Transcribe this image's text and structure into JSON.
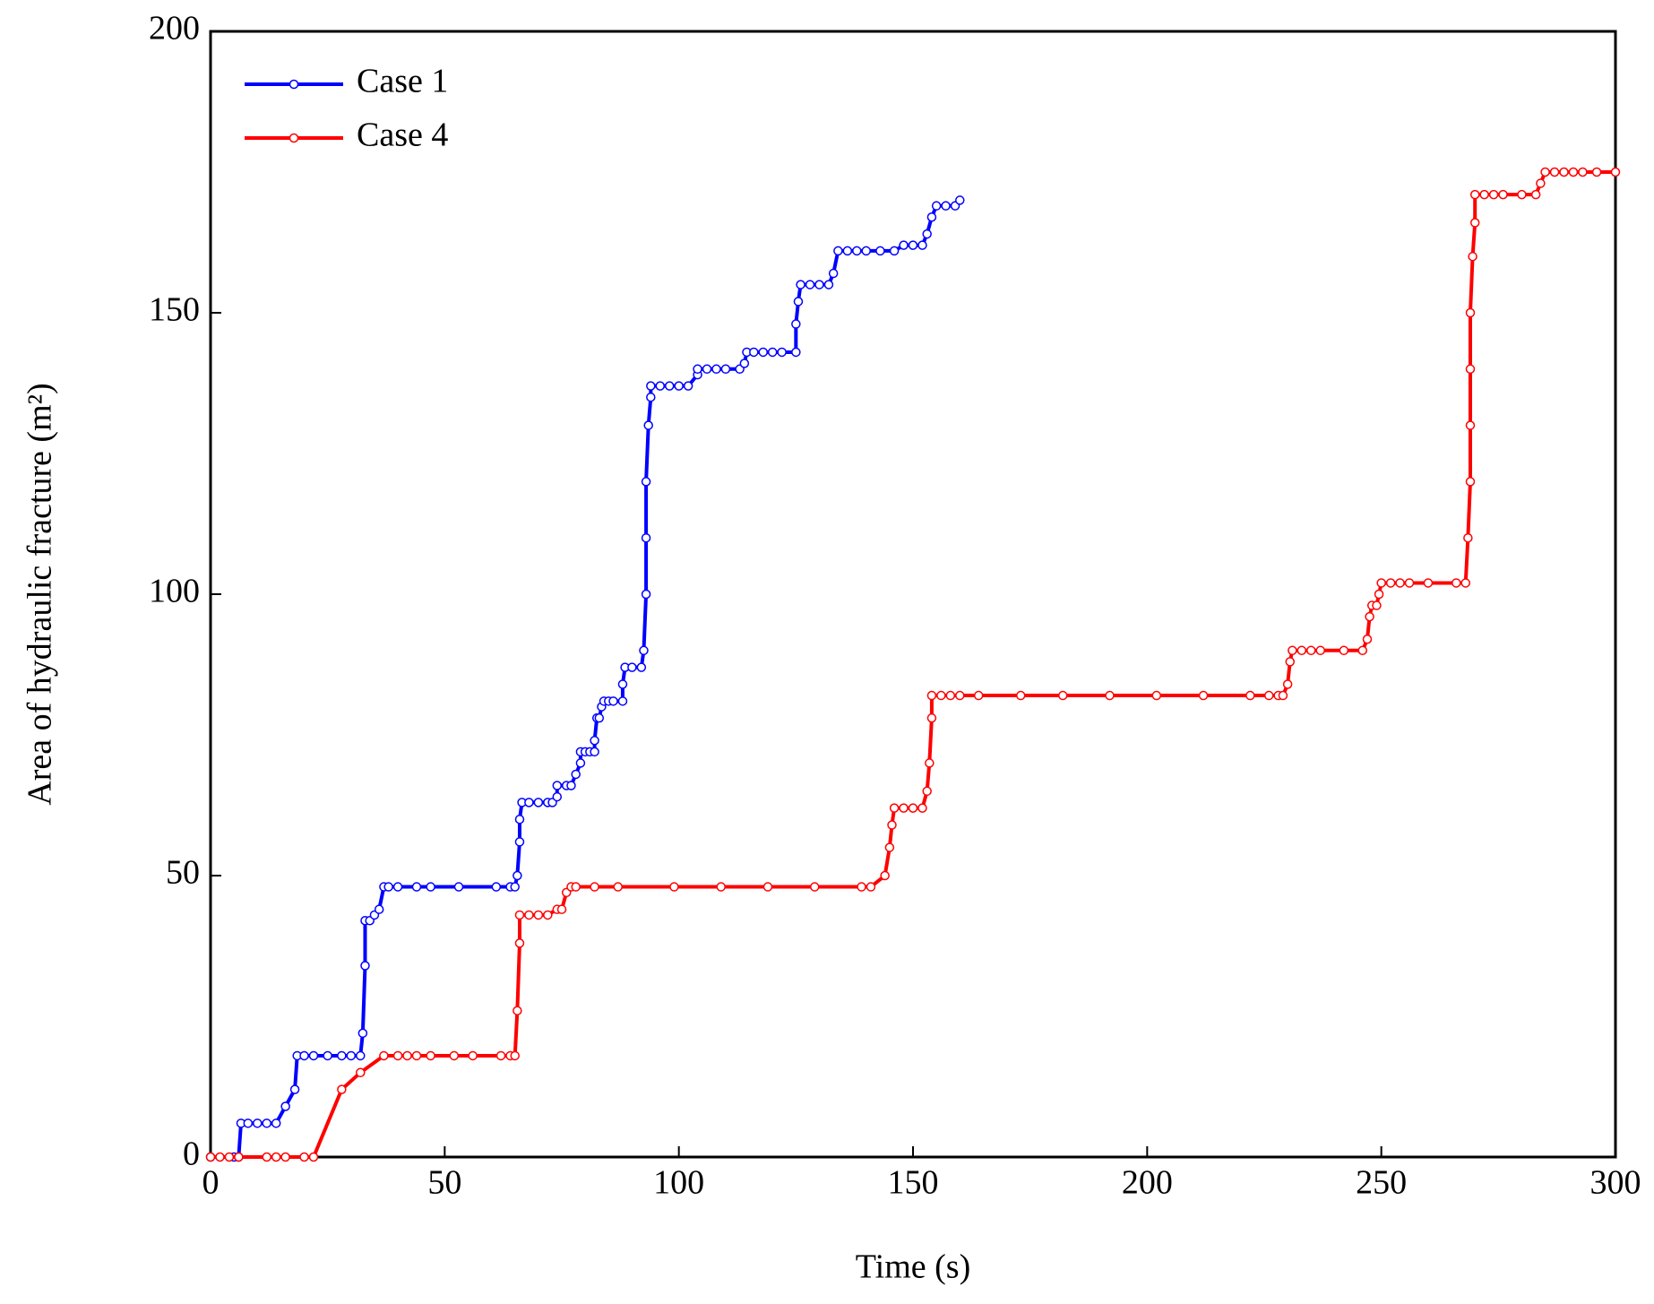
{
  "chart_data": {
    "type": "line",
    "xlabel": "Time (s)",
    "ylabel": "Area of hydraulic fracture (m²)",
    "xlim": [
      0,
      300
    ],
    "xticks": [
      0,
      50,
      100,
      150,
      200,
      250,
      300
    ],
    "ylim": [
      0,
      200
    ],
    "yticks": [
      0,
      50,
      100,
      150,
      200
    ],
    "grid": false,
    "legend": "upper left",
    "series": [
      {
        "name": "Case 1",
        "color": "#0000ff",
        "x": [
          0,
          5,
          6,
          6.5,
          8,
          10,
          12,
          14,
          16,
          18,
          18.5,
          20,
          22,
          25,
          28,
          30,
          32,
          32.5,
          33,
          33,
          34,
          35,
          36,
          37,
          38,
          40,
          44,
          47,
          53,
          61,
          64,
          65,
          65.5,
          66,
          66,
          66.5,
          68,
          70,
          72,
          73,
          74,
          74,
          76,
          77,
          78,
          79,
          79,
          80,
          81,
          82,
          82,
          82.5,
          83,
          83.5,
          84,
          85,
          86,
          88,
          88,
          88.5,
          90,
          92,
          92.5,
          93,
          93,
          93,
          93.5,
          94,
          94,
          96,
          98,
          100,
          102,
          104,
          104,
          106,
          108,
          110,
          113,
          114,
          114.5,
          116,
          118,
          120,
          122,
          125,
          125,
          125.5,
          126,
          128,
          130,
          132,
          133,
          134,
          136,
          138,
          140,
          143,
          146,
          148,
          150,
          152,
          153,
          154,
          155,
          157,
          159,
          160
        ],
        "values": [
          0,
          0,
          0,
          6,
          6,
          6,
          6,
          6,
          9,
          12,
          18,
          18,
          18,
          18,
          18,
          18,
          18,
          22,
          34,
          42,
          42,
          43,
          44,
          48,
          48,
          48,
          48,
          48,
          48,
          48,
          48,
          48,
          50,
          56,
          60,
          63,
          63,
          63,
          63,
          63,
          64,
          66,
          66,
          66,
          68,
          70,
          72,
          72,
          72,
          72,
          74,
          78,
          78,
          80,
          81,
          81,
          81,
          81,
          84,
          87,
          87,
          87,
          90,
          100,
          110,
          120,
          130,
          135,
          137,
          137,
          137,
          137,
          137,
          139,
          140,
          140,
          140,
          140,
          140,
          141,
          143,
          143,
          143,
          143,
          143,
          143,
          148,
          152,
          155,
          155,
          155,
          155,
          157,
          161,
          161,
          161,
          161,
          161,
          161,
          162,
          162,
          162,
          164,
          167,
          169,
          169,
          169,
          170
        ]
      },
      {
        "name": "Case 4",
        "color": "#ff0000",
        "x": [
          0,
          2,
          4,
          6,
          12,
          14,
          16,
          20,
          22,
          28,
          32,
          37,
          40,
          42,
          44,
          47,
          52,
          56,
          62,
          64,
          65,
          65.5,
          66,
          66,
          68,
          70,
          72,
          74,
          75,
          76,
          77,
          78,
          82,
          87,
          99,
          109,
          119,
          129,
          139,
          141,
          144,
          145,
          145.5,
          146,
          148,
          150,
          152,
          153,
          153.5,
          154,
          154,
          156,
          158,
          160,
          164,
          173,
          182,
          192,
          202,
          212,
          222,
          226,
          228,
          229,
          230,
          230.5,
          231,
          233,
          235,
          237,
          242,
          246,
          247,
          247.5,
          248,
          249,
          249.5,
          250,
          252,
          254,
          256,
          260,
          266,
          268,
          268.5,
          269,
          269,
          269,
          269,
          269.5,
          270,
          270,
          272,
          274,
          276,
          280,
          283,
          284,
          285,
          287,
          289,
          291,
          293,
          296,
          300
        ],
        "values": [
          0,
          0,
          0,
          0,
          0,
          0,
          0,
          0,
          0,
          12,
          15,
          18,
          18,
          18,
          18,
          18,
          18,
          18,
          18,
          18,
          18,
          26,
          38,
          43,
          43,
          43,
          43,
          44,
          44,
          47,
          48,
          48,
          48,
          48,
          48,
          48,
          48,
          48,
          48,
          48,
          50,
          55,
          59,
          62,
          62,
          62,
          62,
          65,
          70,
          78,
          82,
          82,
          82,
          82,
          82,
          82,
          82,
          82,
          82,
          82,
          82,
          82,
          82,
          82,
          84,
          88,
          90,
          90,
          90,
          90,
          90,
          90,
          92,
          96,
          98,
          98,
          100,
          102,
          102,
          102,
          102,
          102,
          102,
          102,
          110,
          120,
          130,
          140,
          150,
          160,
          166,
          171,
          171,
          171,
          171,
          171,
          171,
          173,
          175,
          175,
          175,
          175,
          175,
          175,
          175
        ]
      }
    ]
  }
}
